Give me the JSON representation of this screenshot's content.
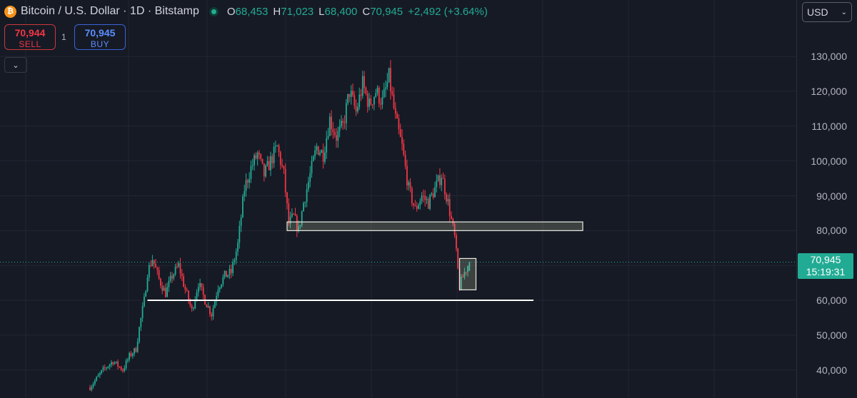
{
  "header": {
    "logo_letter": "₿",
    "symbol": "Bitcoin / U.S. Dollar · 1D · Bitstamp",
    "ohlc": [
      {
        "label": "O",
        "value": "68,453"
      },
      {
        "label": "H",
        "value": "71,023"
      },
      {
        "label": "L",
        "value": "68,400"
      },
      {
        "label": "C",
        "value": "70,945"
      }
    ],
    "change": "+2,492 (+3.64%)"
  },
  "trade": {
    "sell_price": "70,944",
    "sell_label": "SELL",
    "spread": "1",
    "buy_price": "70,945",
    "buy_label": "BUY"
  },
  "currency": {
    "value": "USD"
  },
  "last_price": {
    "value": "70,945",
    "countdown": "15:19:31"
  },
  "colors": {
    "up": "#22ab94",
    "down": "#f23645",
    "background": "#161a25",
    "grid": "#232733"
  },
  "chart_data": {
    "type": "candlestick",
    "ylim": [
      35000,
      140000
    ],
    "y_ticks": [
      "130,000",
      "120,000",
      "110,000",
      "100,000",
      "90,000",
      "80,000",
      "70,000",
      "60,000",
      "50,000",
      "40,000"
    ],
    "y_tick_values": [
      130000,
      120000,
      110000,
      100000,
      90000,
      80000,
      70000,
      60000,
      50000,
      40000
    ],
    "close_path": [
      [
        0,
        35000
      ],
      [
        8,
        40000
      ],
      [
        14,
        42500
      ],
      [
        20,
        40000
      ],
      [
        24,
        44000
      ],
      [
        28,
        46000
      ],
      [
        30,
        52000
      ],
      [
        33,
        60000
      ],
      [
        35,
        68000
      ],
      [
        38,
        72000
      ],
      [
        42,
        66000
      ],
      [
        46,
        62000
      ],
      [
        50,
        67000
      ],
      [
        54,
        70000
      ],
      [
        58,
        63000
      ],
      [
        62,
        57000
      ],
      [
        66,
        65000
      ],
      [
        70,
        60000
      ],
      [
        74,
        56000
      ],
      [
        78,
        64000
      ],
      [
        82,
        67000
      ],
      [
        86,
        68000
      ],
      [
        90,
        76000
      ],
      [
        94,
        92000
      ],
      [
        98,
        98000
      ],
      [
        102,
        102000
      ],
      [
        106,
        96000
      ],
      [
        110,
        100000
      ],
      [
        114,
        104000
      ],
      [
        118,
        96000
      ],
      [
        121,
        82000
      ],
      [
        124,
        84000
      ],
      [
        127,
        80000
      ],
      [
        130,
        88000
      ],
      [
        134,
        96000
      ],
      [
        138,
        104000
      ],
      [
        142,
        102000
      ],
      [
        146,
        112000
      ],
      [
        150,
        107000
      ],
      [
        154,
        110000
      ],
      [
        158,
        120000
      ],
      [
        162,
        114000
      ],
      [
        166,
        122000
      ],
      [
        170,
        116000
      ],
      [
        174,
        120000
      ],
      [
        178,
        117000
      ],
      [
        182,
        124000
      ],
      [
        186,
        112000
      ],
      [
        190,
        104000
      ],
      [
        194,
        92000
      ],
      [
        198,
        86000
      ],
      [
        202,
        90000
      ],
      [
        206,
        88000
      ],
      [
        210,
        92000
      ],
      [
        214,
        96000
      ],
      [
        218,
        88000
      ],
      [
        222,
        78000
      ],
      [
        225,
        64000
      ],
      [
        228,
        68000
      ],
      [
        231,
        71000
      ]
    ],
    "annotations": [
      {
        "type": "zone",
        "x_start": 120,
        "x_end": 300,
        "y_low": 80000,
        "y_high": 82500
      },
      {
        "type": "zone",
        "x_start": 225,
        "x_end": 235,
        "y_low": 63000,
        "y_high": 72000
      },
      {
        "type": "horizontal_line",
        "x_start": 35,
        "x_end": 270,
        "y": 60000
      }
    ],
    "last_price": 70945
  }
}
